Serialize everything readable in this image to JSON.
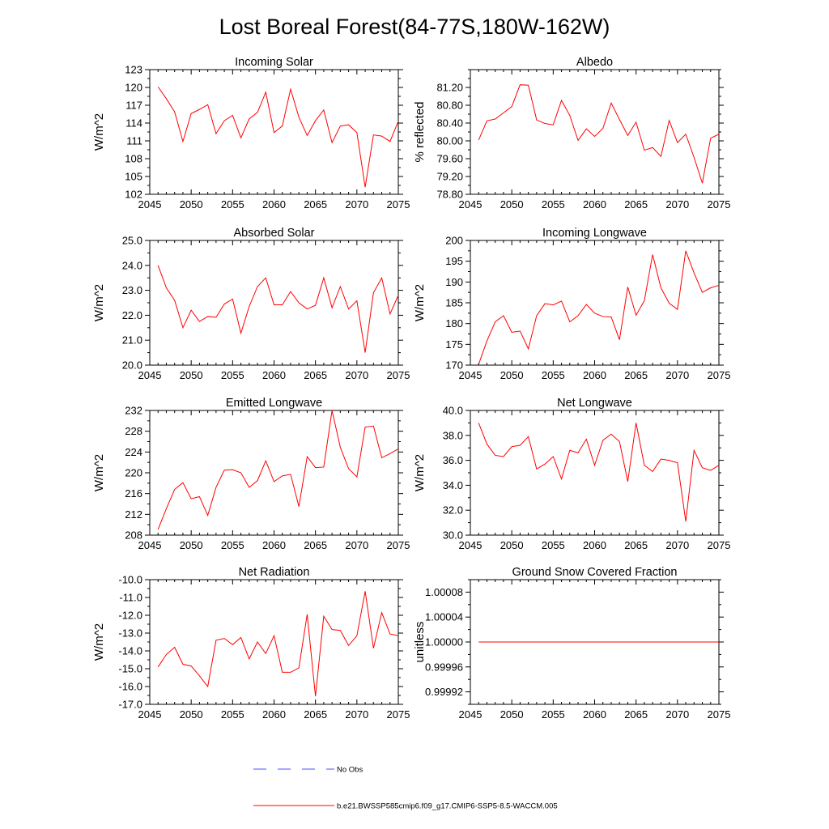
{
  "figure": {
    "title": "Lost Boreal Forest(84-77S,180W-162W)"
  },
  "legend": {
    "entries": [
      {
        "label": "No Obs",
        "color": "#4b50ff",
        "style": "dashed"
      },
      {
        "label": "b.e21.BWSSP585cmip6.f09_g17.CMIP6-SSP5-8.5-WACCM.005",
        "color": "#ff0000",
        "style": "solid"
      }
    ]
  },
  "chart_data": [
    {
      "type": "line",
      "title": "Incoming Solar",
      "ylabel": "W/m^2",
      "xlim": [
        2045,
        2075
      ],
      "ylim": [
        102,
        123
      ],
      "xticks": [
        "2045",
        "2050",
        "2055",
        "2060",
        "2065",
        "2070",
        "2075"
      ],
      "yticks": [
        "102",
        "105",
        "108",
        "111",
        "114",
        "117",
        "120",
        "123"
      ],
      "x": [
        2046,
        2047,
        2048,
        2049,
        2050,
        2051,
        2052,
        2053,
        2054,
        2055,
        2056,
        2057,
        2058,
        2059,
        2060,
        2061,
        2062,
        2063,
        2064,
        2065,
        2066,
        2067,
        2068,
        2069,
        2070,
        2071,
        2072,
        2073,
        2074,
        2075
      ],
      "series": [
        {
          "name": "b.e21.BWSSP585cmip6.f09_g17.CMIP6-SSP5-8.5-WACCM.005",
          "color": "#ff0000",
          "values": [
            120.1,
            118.1,
            115.9,
            110.9,
            115.6,
            116.3,
            117.1,
            112.2,
            114.4,
            115.3,
            111.5,
            114.7,
            115.8,
            119.2,
            112.4,
            113.5,
            119.7,
            115.0,
            111.9,
            114.4,
            116.2,
            110.7,
            113.5,
            113.7,
            112.4,
            103.2,
            112.0,
            111.8,
            110.9,
            114.3
          ]
        }
      ]
    },
    {
      "type": "line",
      "title": "Albedo",
      "ylabel": "% reflected",
      "xlim": [
        2045,
        2075
      ],
      "ylim": [
        78.8,
        81.6
      ],
      "xticks": [
        "2045",
        "2050",
        "2055",
        "2060",
        "2065",
        "2070",
        "2075"
      ],
      "yticks": [
        "78.80",
        "79.20",
        "79.60",
        "80.00",
        "80.40",
        "80.80",
        "81.20"
      ],
      "x": [
        2046,
        2047,
        2048,
        2049,
        2050,
        2051,
        2052,
        2053,
        2054,
        2055,
        2056,
        2057,
        2058,
        2059,
        2060,
        2061,
        2062,
        2063,
        2064,
        2065,
        2066,
        2067,
        2068,
        2069,
        2070,
        2071,
        2072,
        2073,
        2074,
        2075
      ],
      "series": [
        {
          "name": "b.e21.BWSSP585cmip6.f09_g17.CMIP6-SSP5-8.5-WACCM.005",
          "color": "#ff0000",
          "values": [
            80.02,
            80.45,
            80.49,
            80.63,
            80.77,
            81.26,
            81.25,
            80.47,
            80.39,
            80.36,
            80.91,
            80.57,
            80.01,
            80.27,
            80.1,
            80.28,
            80.85,
            80.48,
            80.12,
            80.42,
            79.79,
            79.85,
            79.65,
            80.46,
            79.96,
            80.15,
            79.63,
            79.05,
            80.06,
            80.15
          ]
        }
      ]
    },
    {
      "type": "line",
      "title": "Absorbed Solar",
      "ylabel": "W/m^2",
      "xlim": [
        2045,
        2075
      ],
      "ylim": [
        20.0,
        25.0
      ],
      "xticks": [
        "2045",
        "2050",
        "2055",
        "2060",
        "2065",
        "2070",
        "2075"
      ],
      "yticks": [
        "20.0",
        "21.0",
        "22.0",
        "23.0",
        "24.0",
        "25.0"
      ],
      "x": [
        2046,
        2047,
        2048,
        2049,
        2050,
        2051,
        2052,
        2053,
        2054,
        2055,
        2056,
        2057,
        2058,
        2059,
        2060,
        2061,
        2062,
        2063,
        2064,
        2065,
        2066,
        2067,
        2068,
        2069,
        2070,
        2071,
        2072,
        2073,
        2074,
        2075
      ],
      "series": [
        {
          "name": "b.e21.BWSSP585cmip6.f09_g17.CMIP6-SSP5-8.5-WACCM.005",
          "color": "#ff0000",
          "values": [
            24.0,
            23.1,
            22.6,
            21.5,
            22.2,
            21.75,
            21.95,
            21.92,
            22.45,
            22.65,
            21.28,
            22.35,
            23.15,
            23.5,
            22.42,
            22.42,
            22.95,
            22.5,
            22.25,
            22.4,
            23.5,
            22.3,
            23.15,
            22.25,
            22.58,
            20.5,
            22.9,
            23.5,
            22.05,
            22.8
          ]
        }
      ]
    },
    {
      "type": "line",
      "title": "Incoming Longwave",
      "ylabel": "W/m^2",
      "xlim": [
        2045,
        2075
      ],
      "ylim": [
        170,
        200
      ],
      "xticks": [
        "2045",
        "2050",
        "2055",
        "2060",
        "2065",
        "2070",
        "2075"
      ],
      "yticks": [
        "170",
        "175",
        "180",
        "185",
        "190",
        "195",
        "200"
      ],
      "x": [
        2046,
        2047,
        2048,
        2049,
        2050,
        2051,
        2052,
        2053,
        2054,
        2055,
        2056,
        2057,
        2058,
        2059,
        2060,
        2061,
        2062,
        2063,
        2064,
        2065,
        2066,
        2067,
        2068,
        2069,
        2070,
        2071,
        2072,
        2073,
        2074,
        2075
      ],
      "series": [
        {
          "name": "b.e21.BWSSP585cmip6.f09_g17.CMIP6-SSP5-8.5-WACCM.005",
          "color": "#ff0000",
          "values": [
            170.2,
            175.8,
            180.4,
            181.9,
            177.9,
            178.2,
            173.9,
            181.9,
            184.8,
            184.5,
            185.4,
            180.4,
            181.9,
            184.6,
            182.5,
            181.7,
            181.6,
            176.1,
            188.8,
            182.0,
            185.5,
            196.6,
            188.6,
            184.9,
            183.4,
            197.5,
            192.2,
            187.5,
            188.6,
            189.2
          ]
        }
      ]
    },
    {
      "type": "line",
      "title": "Emitted Longwave",
      "ylabel": "W/m^2",
      "xlim": [
        2045,
        2075
      ],
      "ylim": [
        208,
        232
      ],
      "xticks": [
        "2045",
        "2050",
        "2055",
        "2060",
        "2065",
        "2070",
        "2075"
      ],
      "yticks": [
        "208",
        "212",
        "216",
        "220",
        "224",
        "228",
        "232"
      ],
      "x": [
        2046,
        2047,
        2048,
        2049,
        2050,
        2051,
        2052,
        2053,
        2054,
        2055,
        2056,
        2057,
        2058,
        2059,
        2060,
        2061,
        2062,
        2063,
        2064,
        2065,
        2066,
        2067,
        2068,
        2069,
        2070,
        2071,
        2072,
        2073,
        2074,
        2075
      ],
      "series": [
        {
          "name": "b.e21.BWSSP585cmip6.f09_g17.CMIP6-SSP5-8.5-WACCM.005",
          "color": "#ff0000",
          "values": [
            209.1,
            213.1,
            216.8,
            218.1,
            215.0,
            215.4,
            211.8,
            217.2,
            220.5,
            220.6,
            220.0,
            217.2,
            218.5,
            222.3,
            218.3,
            219.4,
            219.7,
            213.5,
            223.1,
            221.0,
            221.1,
            232.0,
            224.9,
            220.8,
            219.2,
            228.8,
            229.0,
            222.9,
            223.7,
            224.6
          ]
        }
      ]
    },
    {
      "type": "line",
      "title": "Net Longwave",
      "ylabel": "W/m^2",
      "xlim": [
        2045,
        2075
      ],
      "ylim": [
        30.0,
        40.0
      ],
      "xticks": [
        "2045",
        "2050",
        "2055",
        "2060",
        "2065",
        "2070",
        "2075"
      ],
      "yticks": [
        "30.0",
        "32.0",
        "34.0",
        "36.0",
        "38.0",
        "40.0"
      ],
      "x": [
        2046,
        2047,
        2048,
        2049,
        2050,
        2051,
        2052,
        2053,
        2054,
        2055,
        2056,
        2057,
        2058,
        2059,
        2060,
        2061,
        2062,
        2063,
        2064,
        2065,
        2066,
        2067,
        2068,
        2069,
        2070,
        2071,
        2072,
        2073,
        2074,
        2075
      ],
      "series": [
        {
          "name": "b.e21.BWSSP585cmip6.f09_g17.CMIP6-SSP5-8.5-WACCM.005",
          "color": "#ff0000",
          "values": [
            39.0,
            37.3,
            36.4,
            36.3,
            37.1,
            37.2,
            37.9,
            35.3,
            35.7,
            36.3,
            34.5,
            36.8,
            36.6,
            37.7,
            35.6,
            37.6,
            38.1,
            37.5,
            34.3,
            39.0,
            35.6,
            35.1,
            36.1,
            36.0,
            35.8,
            31.1,
            36.8,
            35.4,
            35.2,
            35.6
          ]
        }
      ]
    },
    {
      "type": "line",
      "title": "Net Radiation",
      "ylabel": "W/m^2",
      "xlim": [
        2045,
        2075
      ],
      "ylim": [
        -17.0,
        -10.0
      ],
      "xticks": [
        "2045",
        "2050",
        "2055",
        "2060",
        "2065",
        "2070",
        "2075"
      ],
      "yticks": [
        "-17.0",
        "-16.0",
        "-15.0",
        "-14.0",
        "-13.0",
        "-12.0",
        "-11.0",
        "-10.0"
      ],
      "x": [
        2046,
        2047,
        2048,
        2049,
        2050,
        2051,
        2052,
        2053,
        2054,
        2055,
        2056,
        2057,
        2058,
        2059,
        2060,
        2061,
        2062,
        2063,
        2064,
        2065,
        2066,
        2067,
        2068,
        2069,
        2070,
        2071,
        2072,
        2073,
        2074,
        2075
      ],
      "series": [
        {
          "name": "b.e21.BWSSP585cmip6.f09_g17.CMIP6-SSP5-8.5-WACCM.005",
          "color": "#ff0000",
          "values": [
            -14.9,
            -14.2,
            -13.8,
            -14.75,
            -14.85,
            -15.4,
            -16.0,
            -13.4,
            -13.3,
            -13.65,
            -13.25,
            -14.45,
            -13.5,
            -14.15,
            -13.15,
            -15.2,
            -15.2,
            -14.95,
            -11.95,
            -16.55,
            -12.05,
            -12.8,
            -12.85,
            -13.7,
            -13.15,
            -10.65,
            -13.85,
            -11.85,
            -13.05,
            -13.15
          ]
        }
      ]
    },
    {
      "type": "line",
      "title": "Ground Snow Covered Fraction",
      "ylabel": "unitless",
      "xlim": [
        2045,
        2075
      ],
      "ylim": [
        0.9999,
        1.0001
      ],
      "xticks": [
        "2045",
        "2050",
        "2055",
        "2060",
        "2065",
        "2070",
        "2075"
      ],
      "yticks": [
        "0.99992",
        "0.99996",
        "1.00000",
        "1.00004",
        "1.00008"
      ],
      "x": [
        2046,
        2047,
        2048,
        2049,
        2050,
        2051,
        2052,
        2053,
        2054,
        2055,
        2056,
        2057,
        2058,
        2059,
        2060,
        2061,
        2062,
        2063,
        2064,
        2065,
        2066,
        2067,
        2068,
        2069,
        2070,
        2071,
        2072,
        2073,
        2074,
        2075
      ],
      "series": [
        {
          "name": "b.e21.BWSSP585cmip6.f09_g17.CMIP6-SSP5-8.5-WACCM.005",
          "color": "#ff0000",
          "values": [
            1,
            1,
            1,
            1,
            1,
            1,
            1,
            1,
            1,
            1,
            1,
            1,
            1,
            1,
            1,
            1,
            1,
            1,
            1,
            1,
            1,
            1,
            1,
            1,
            1,
            1,
            1,
            1,
            1,
            1
          ]
        }
      ]
    }
  ]
}
